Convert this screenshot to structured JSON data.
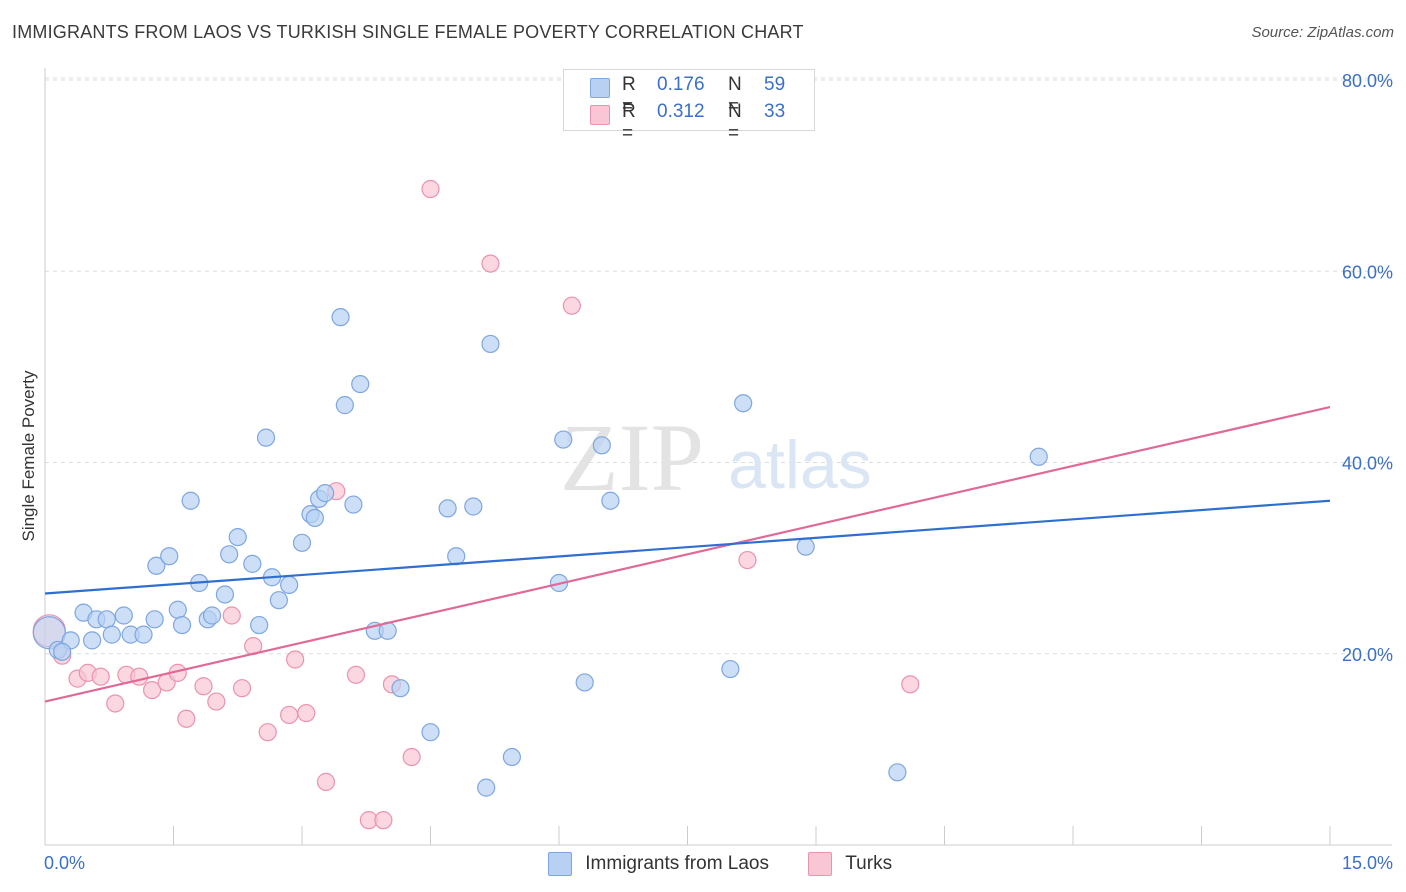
{
  "title": "IMMIGRANTS FROM LAOS VS TURKISH SINGLE FEMALE POVERTY CORRELATION CHART",
  "source": "Source: ZipAtlas.com",
  "watermark": {
    "zip": "ZIP",
    "atlas": "atlas"
  },
  "legend_top": [
    {
      "r_label": "R =",
      "r_value": "0.176",
      "n_label": "N =",
      "n_value": "59"
    },
    {
      "r_label": "R =",
      "r_value": "0.312",
      "n_label": "N =",
      "n_value": "33"
    }
  ],
  "legend_bottom": [
    {
      "label": "Immigrants from Laos"
    },
    {
      "label": "Turks"
    }
  ],
  "colors": {
    "blue_fill": "#b8d1f3",
    "blue_stroke": "#7ea6e0",
    "blue_line": "#2f6fd0",
    "pink_fill": "#f8c6d4",
    "pink_stroke": "#eb93ac",
    "pink_line": "#e06a97",
    "axis_label": "#3b6fc9"
  },
  "chart_data": {
    "type": "scatter",
    "title": "IMMIGRANTS FROM LAOS VS TURKISH SINGLE FEMALE POVERTY CORRELATION CHART",
    "xlabel": "",
    "ylabel": "Single Female Poverty",
    "xlim": [
      0,
      15
    ],
    "ylim": [
      0,
      80
    ],
    "x_tick_labels": [
      "0.0%",
      "15.0%"
    ],
    "y_ticks": [
      20,
      40,
      60,
      80
    ],
    "y_tick_labels": [
      "20.0%",
      "40.0%",
      "60.0%",
      "80.0%"
    ],
    "grid": true,
    "series": [
      {
        "name": "Immigrants from Laos",
        "r": 0.176,
        "n": 59,
        "trend": {
          "x": [
            0,
            15
          ],
          "y": [
            26.3,
            36.0
          ]
        },
        "points": [
          {
            "x": 0.05,
            "y": 22.2,
            "big": true
          },
          {
            "x": 0.15,
            "y": 20.4
          },
          {
            "x": 0.3,
            "y": 21.4
          },
          {
            "x": 0.45,
            "y": 24.3
          },
          {
            "x": 0.55,
            "y": 21.4
          },
          {
            "x": 0.6,
            "y": 23.6
          },
          {
            "x": 0.72,
            "y": 23.6
          },
          {
            "x": 0.78,
            "y": 22.0
          },
          {
            "x": 0.92,
            "y": 24.0
          },
          {
            "x": 1.0,
            "y": 22.0
          },
          {
            "x": 1.15,
            "y": 22.0
          },
          {
            "x": 1.3,
            "y": 29.2
          },
          {
            "x": 1.28,
            "y": 23.6
          },
          {
            "x": 1.45,
            "y": 30.2
          },
          {
            "x": 1.55,
            "y": 24.6
          },
          {
            "x": 1.6,
            "y": 23.0
          },
          {
            "x": 1.7,
            "y": 36.0
          },
          {
            "x": 1.8,
            "y": 27.4
          },
          {
            "x": 1.9,
            "y": 23.6
          },
          {
            "x": 1.95,
            "y": 24.0
          },
          {
            "x": 2.1,
            "y": 26.2
          },
          {
            "x": 2.15,
            "y": 30.4
          },
          {
            "x": 2.25,
            "y": 32.2
          },
          {
            "x": 2.42,
            "y": 29.4
          },
          {
            "x": 2.5,
            "y": 23.0
          },
          {
            "x": 2.58,
            "y": 42.6
          },
          {
            "x": 2.65,
            "y": 28.0
          },
          {
            "x": 2.73,
            "y": 25.6
          },
          {
            "x": 2.85,
            "y": 27.2
          },
          {
            "x": 3.0,
            "y": 31.6
          },
          {
            "x": 3.1,
            "y": 34.6
          },
          {
            "x": 3.15,
            "y": 34.2
          },
          {
            "x": 3.2,
            "y": 36.2
          },
          {
            "x": 3.27,
            "y": 36.8
          },
          {
            "x": 3.45,
            "y": 55.2
          },
          {
            "x": 3.5,
            "y": 46.0
          },
          {
            "x": 3.6,
            "y": 35.6
          },
          {
            "x": 3.68,
            "y": 48.2
          },
          {
            "x": 3.85,
            "y": 22.4
          },
          {
            "x": 4.0,
            "y": 22.4
          },
          {
            "x": 4.15,
            "y": 16.4
          },
          {
            "x": 4.5,
            "y": 11.8
          },
          {
            "x": 4.7,
            "y": 35.2
          },
          {
            "x": 4.8,
            "y": 30.2
          },
          {
            "x": 5.0,
            "y": 35.4
          },
          {
            "x": 5.15,
            "y": 6.0
          },
          {
            "x": 5.2,
            "y": 52.4
          },
          {
            "x": 5.45,
            "y": 9.2
          },
          {
            "x": 6.0,
            "y": 27.4
          },
          {
            "x": 6.05,
            "y": 42.4
          },
          {
            "x": 6.3,
            "y": 17.0
          },
          {
            "x": 6.5,
            "y": 41.8
          },
          {
            "x": 6.6,
            "y": 36.0
          },
          {
            "x": 8.0,
            "y": 18.4
          },
          {
            "x": 8.15,
            "y": 46.2
          },
          {
            "x": 8.88,
            "y": 31.2
          },
          {
            "x": 9.95,
            "y": 7.6
          },
          {
            "x": 11.6,
            "y": 40.6
          },
          {
            "x": 0.2,
            "y": 20.2
          }
        ]
      },
      {
        "name": "Turks",
        "r": 0.312,
        "n": 33,
        "trend": {
          "x": [
            0,
            15
          ],
          "y": [
            15.0,
            45.8
          ]
        },
        "points": [
          {
            "x": 0.05,
            "y": 22.4,
            "big": true
          },
          {
            "x": 0.2,
            "y": 19.8
          },
          {
            "x": 0.38,
            "y": 17.4
          },
          {
            "x": 0.5,
            "y": 18.0
          },
          {
            "x": 0.65,
            "y": 17.6
          },
          {
            "x": 0.82,
            "y": 14.8
          },
          {
            "x": 0.95,
            "y": 17.8
          },
          {
            "x": 1.1,
            "y": 17.6
          },
          {
            "x": 1.25,
            "y": 16.2
          },
          {
            "x": 1.42,
            "y": 17.0
          },
          {
            "x": 1.55,
            "y": 18.0
          },
          {
            "x": 1.65,
            "y": 13.2
          },
          {
            "x": 1.85,
            "y": 16.6
          },
          {
            "x": 2.0,
            "y": 15.0
          },
          {
            "x": 2.18,
            "y": 24.0
          },
          {
            "x": 2.3,
            "y": 16.4
          },
          {
            "x": 2.43,
            "y": 20.8
          },
          {
            "x": 2.6,
            "y": 11.8
          },
          {
            "x": 2.85,
            "y": 13.6
          },
          {
            "x": 2.92,
            "y": 19.4
          },
          {
            "x": 3.05,
            "y": 13.8
          },
          {
            "x": 3.28,
            "y": 6.6
          },
          {
            "x": 3.4,
            "y": 37.0
          },
          {
            "x": 3.63,
            "y": 17.8
          },
          {
            "x": 3.78,
            "y": 2.6
          },
          {
            "x": 3.95,
            "y": 2.6
          },
          {
            "x": 4.05,
            "y": 16.8
          },
          {
            "x": 4.28,
            "y": 9.2
          },
          {
            "x": 4.5,
            "y": 68.6
          },
          {
            "x": 5.2,
            "y": 60.8
          },
          {
            "x": 6.15,
            "y": 56.4
          },
          {
            "x": 8.2,
            "y": 29.8
          },
          {
            "x": 10.1,
            "y": 16.8
          }
        ]
      }
    ]
  }
}
